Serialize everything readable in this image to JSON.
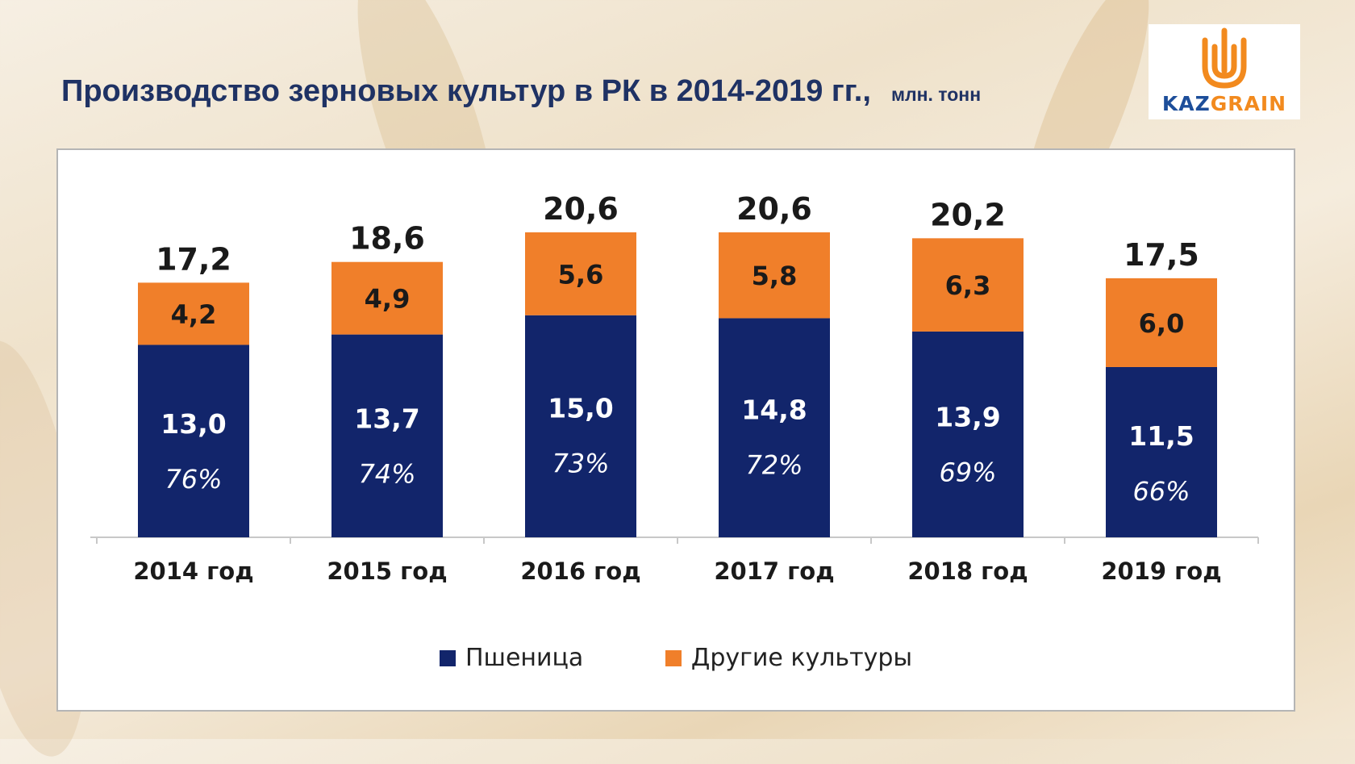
{
  "header": {
    "title": "Производство зерновых культур в РК в 2014-2019 гг.,",
    "unit": "млн. тонн"
  },
  "logo": {
    "part1": "KAZ",
    "part2": "GRAIN"
  },
  "colors": {
    "wheat": "#12256b",
    "other": "#f07f2a",
    "title": "#1f3264",
    "logo_blue": "#1d4e9a",
    "logo_orange": "#f28a1e"
  },
  "chart_data": {
    "type": "bar",
    "stacked": true,
    "categories": [
      "2014 год",
      "2015 год",
      "2016 год",
      "2017 год",
      "2018 год",
      "2019 год"
    ],
    "series": [
      {
        "name": "Пшеница",
        "values": [
          13.0,
          13.7,
          15.0,
          14.8,
          13.9,
          11.5
        ],
        "labels": [
          "13,0",
          "13,7",
          "15,0",
          "14,8",
          "13,9",
          "11,5"
        ],
        "share_labels": [
          "76%",
          "74%",
          "73%",
          "72%",
          "69%",
          "66%"
        ]
      },
      {
        "name": "Другие культуры",
        "values": [
          4.2,
          4.9,
          5.6,
          5.8,
          6.3,
          6.0
        ],
        "labels": [
          "4,2",
          "4,9",
          "5,6",
          "5,8",
          "6,3",
          "6,0"
        ]
      }
    ],
    "totals": [
      17.2,
      18.6,
      20.6,
      20.6,
      20.2,
      17.5
    ],
    "total_labels": [
      "17,2",
      "18,6",
      "20,6",
      "20,6",
      "20,2",
      "17,5"
    ],
    "ylim": [
      0,
      20.6
    ],
    "legend_position": "bottom",
    "grid": false
  }
}
